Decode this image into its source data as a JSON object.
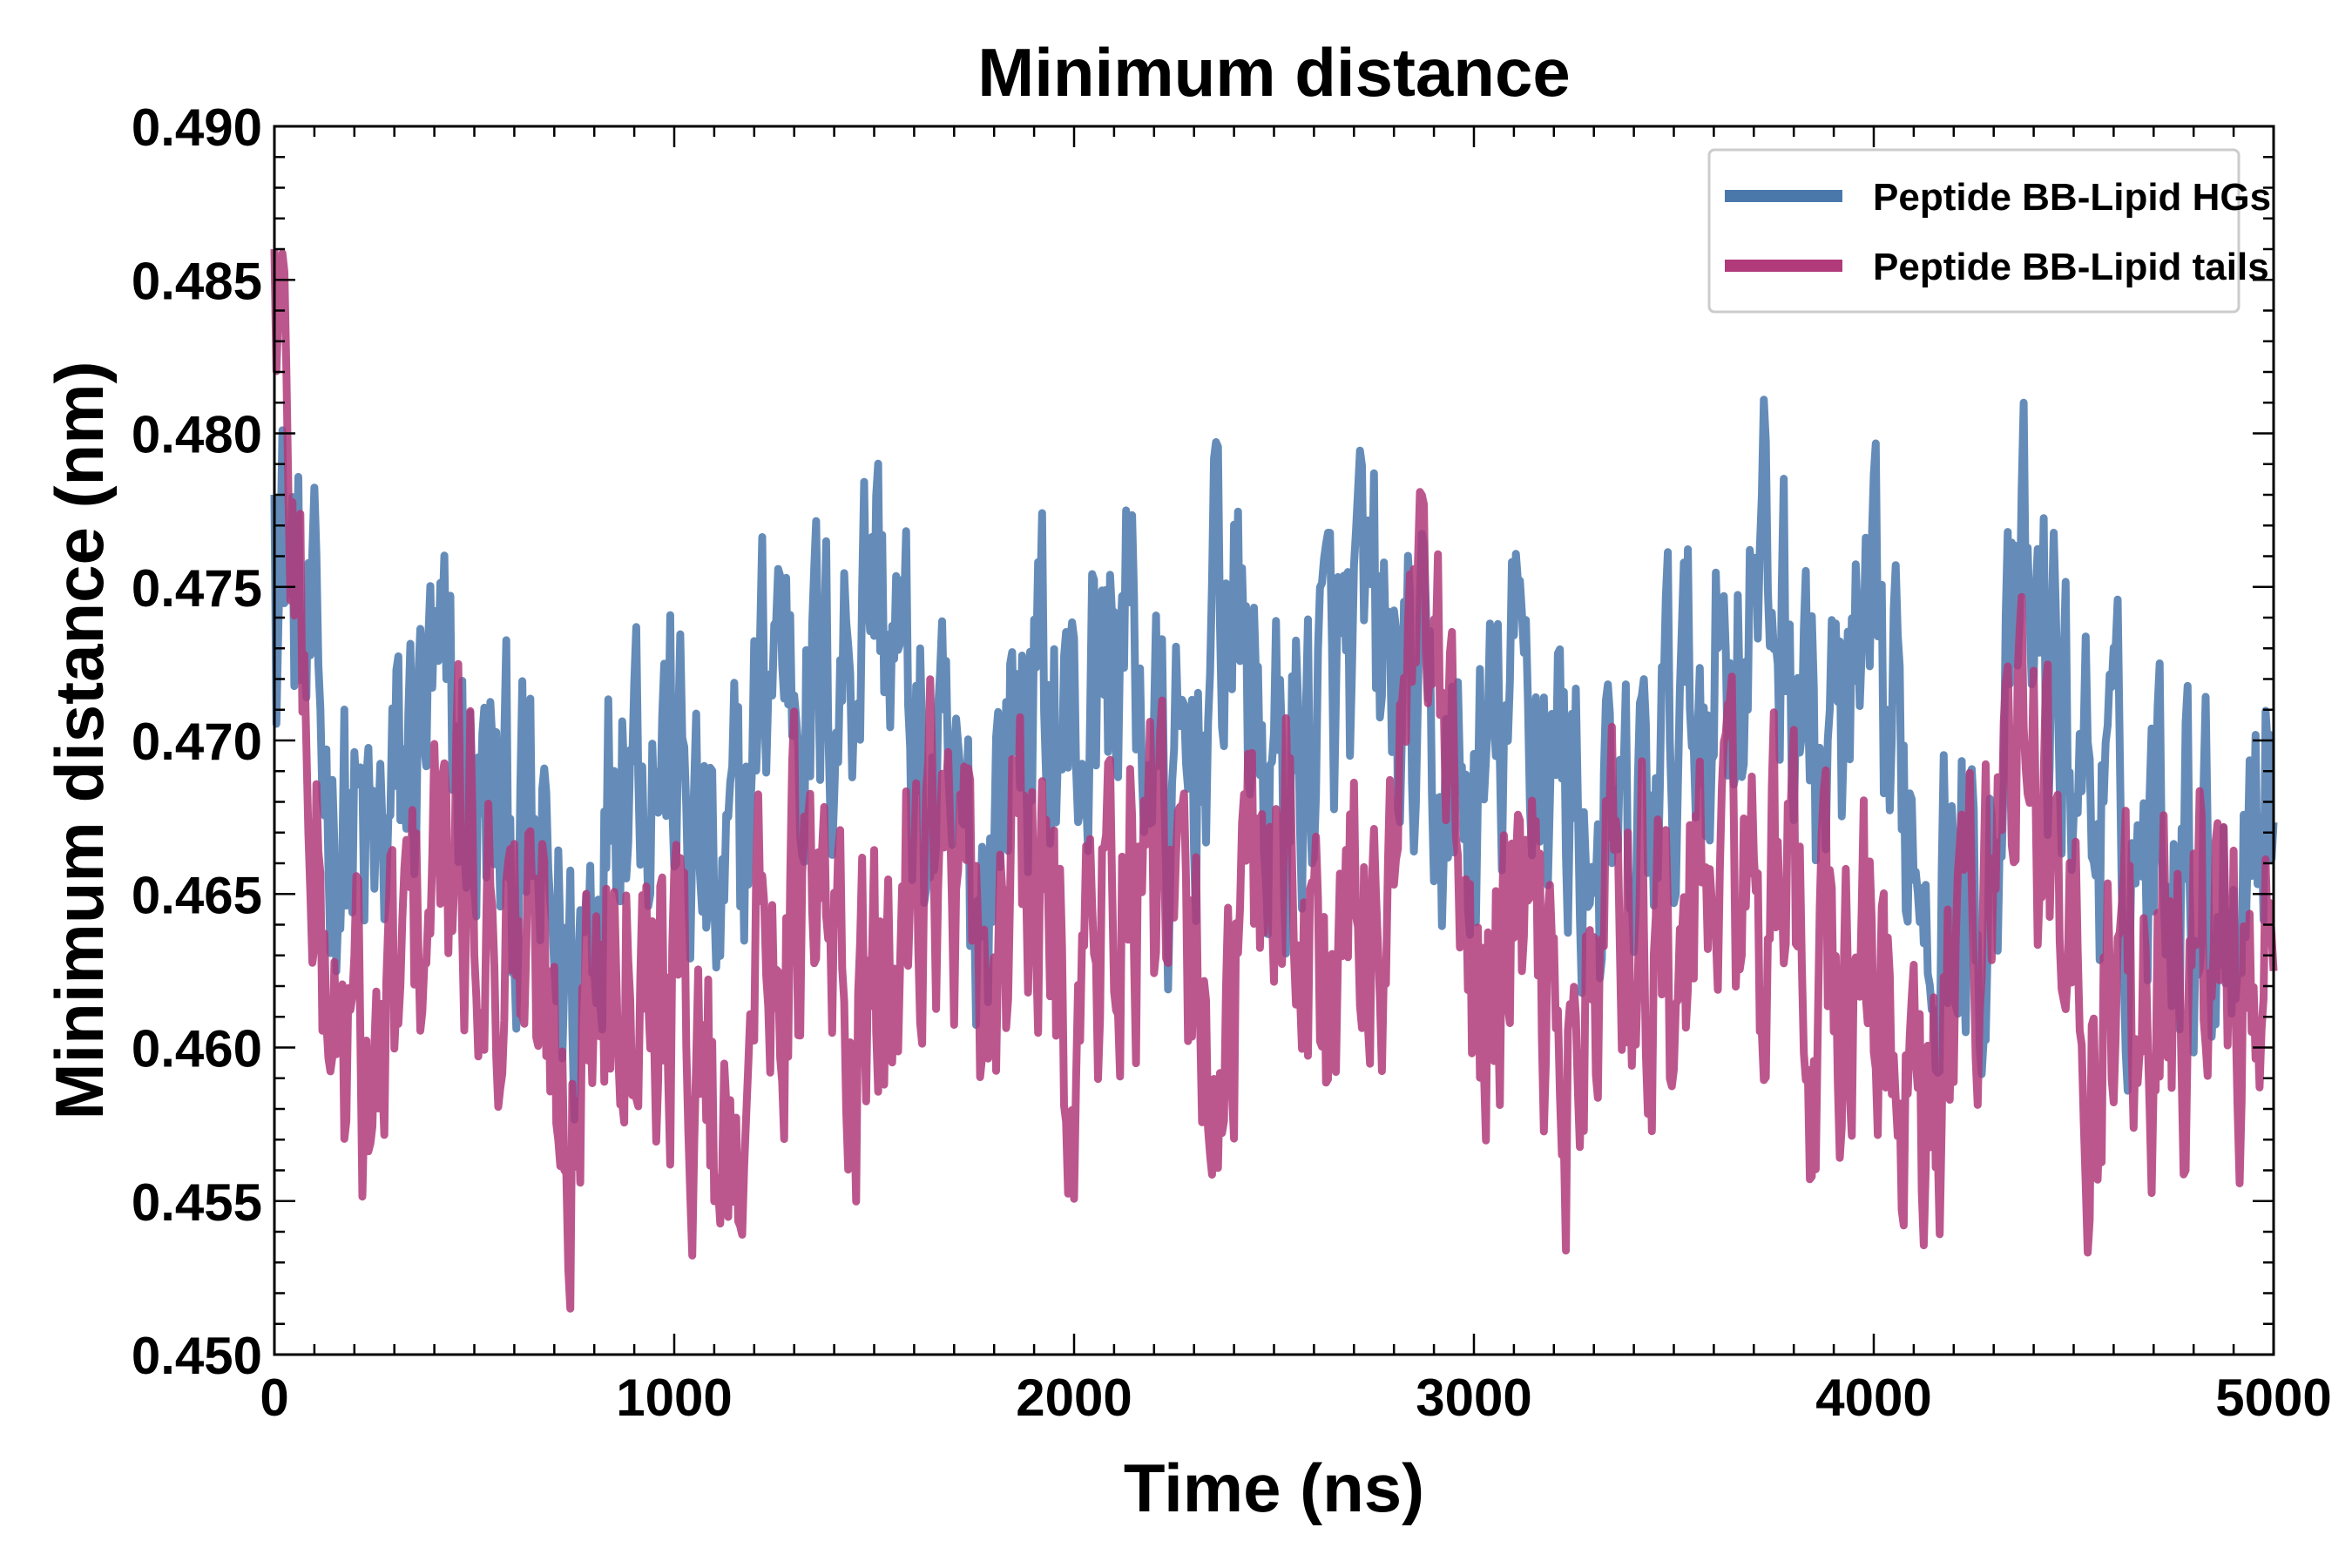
{
  "chart_data": {
    "type": "line",
    "title": "Minimum distance",
    "xlabel": "Time (ns)",
    "ylabel": "Minimum distance (nm)",
    "xlim": [
      0,
      5000
    ],
    "ylim": [
      0.45,
      0.49
    ],
    "xticks": [
      "0",
      "1000",
      "2000",
      "3000",
      "4000",
      "5000"
    ],
    "yticks": [
      "0.450",
      "0.455",
      "0.460",
      "0.465",
      "0.470",
      "0.475",
      "0.480",
      "0.485",
      "0.490"
    ],
    "grid": false,
    "legend_position": "top-right",
    "series": [
      {
        "name": "Peptide BB-Lipid HGs",
        "color": "#4a78ab",
        "x": [
          0,
          125,
          250,
          375,
          500,
          625,
          750,
          875,
          1000,
          1125,
          1250,
          1375,
          1500,
          1625,
          1750,
          1875,
          2000,
          2125,
          2250,
          2375,
          2500,
          2625,
          2750,
          2875,
          3000,
          3125,
          3250,
          3375,
          3500,
          3625,
          3750,
          3875,
          4000,
          4125,
          4250,
          4375,
          4500,
          4625,
          4750,
          4875,
          5000
        ],
        "values": [
          0.478,
          0.469,
          0.465,
          0.471,
          0.468,
          0.466,
          0.462,
          0.472,
          0.469,
          0.463,
          0.474,
          0.471,
          0.476,
          0.468,
          0.465,
          0.472,
          0.47,
          0.474,
          0.466,
          0.475,
          0.468,
          0.471,
          0.473,
          0.469,
          0.467,
          0.472,
          0.468,
          0.465,
          0.47,
          0.473,
          0.475,
          0.469,
          0.471,
          0.467,
          0.464,
          0.474,
          0.47,
          0.466,
          0.468,
          0.465,
          0.47
        ]
      },
      {
        "name": "Peptide BB-Lipid tails",
        "color": "#b03a7a",
        "x": [
          0,
          125,
          250,
          375,
          500,
          625,
          750,
          875,
          1000,
          1125,
          1250,
          1375,
          1500,
          1625,
          1750,
          1875,
          2000,
          2125,
          2250,
          2375,
          2500,
          2625,
          2750,
          2875,
          3000,
          3125,
          3250,
          3375,
          3500,
          3625,
          3750,
          3875,
          4000,
          4125,
          4250,
          4375,
          4500,
          4625,
          4750,
          4875,
          5000
        ],
        "values": [
          0.486,
          0.462,
          0.458,
          0.465,
          0.466,
          0.463,
          0.459,
          0.466,
          0.462,
          0.457,
          0.465,
          0.463,
          0.46,
          0.468,
          0.462,
          0.465,
          0.461,
          0.466,
          0.463,
          0.46,
          0.468,
          0.462,
          0.464,
          0.473,
          0.461,
          0.464,
          0.459,
          0.466,
          0.462,
          0.466,
          0.464,
          0.461,
          0.463,
          0.455,
          0.465,
          0.471,
          0.46,
          0.463,
          0.461,
          0.463,
          0.461
        ]
      }
    ]
  }
}
